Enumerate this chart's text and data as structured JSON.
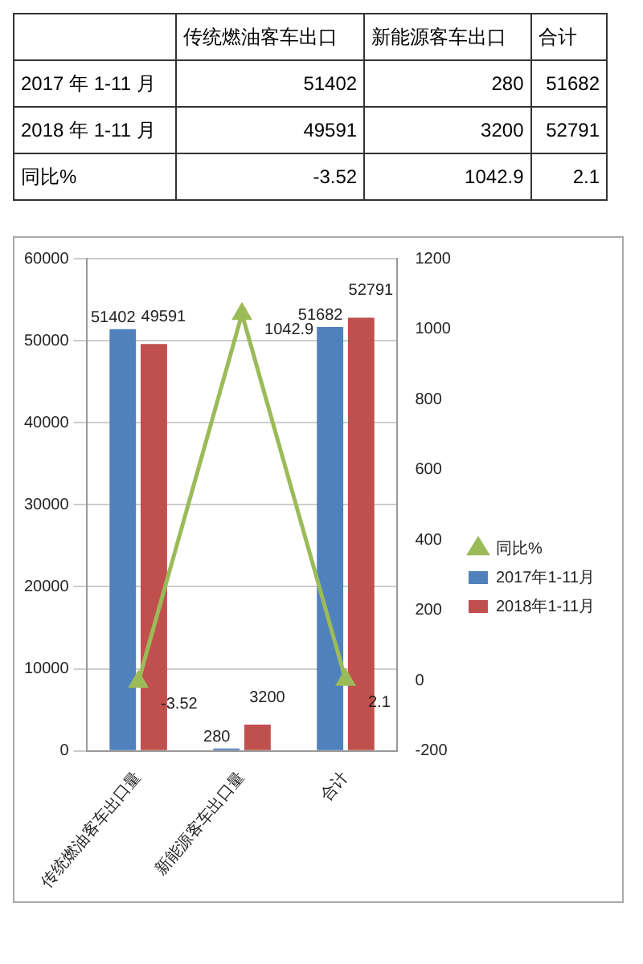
{
  "chart_data": [
    {
      "type": "other",
      "annotations": [
        "传统燃油客车出口",
        "新能源客车出口",
        "合计",
        "2017 年 1-11 月",
        "51402",
        "280",
        "51682",
        "2018 年 1-11 月",
        "49591",
        "3200",
        "52791",
        "同比%",
        "-3.52",
        "1042.9",
        "2.1"
      ]
    },
    {
      "type": "bar",
      "categories": [
        "传统燃油客车出口量",
        "新能源客车出口量",
        "合计"
      ],
      "series": [
        {
          "name": "2017年1-11月",
          "type": "bar",
          "color": "#4f81bd",
          "values": [
            51402,
            280,
            51682
          ]
        },
        {
          "name": "2018年1-11月",
          "type": "bar",
          "color": "#c0504d",
          "values": [
            49591,
            3200,
            52791
          ]
        },
        {
          "name": "同比%",
          "type": "line",
          "axis": "y2",
          "color": "#9bbb59",
          "values": [
            -3.52,
            1042.9,
            2.1
          ]
        }
      ],
      "ylim": [
        0,
        60000
      ],
      "yticks": [
        0,
        10000,
        20000,
        30000,
        40000,
        50000,
        60000
      ],
      "y2lim": [
        -200,
        1200
      ],
      "y2ticks": [
        -200,
        0,
        200,
        400,
        600,
        800,
        1000,
        1200
      ],
      "grid": "y",
      "legend": "right",
      "marker": "triangle",
      "line_style": "solid",
      "data_labels": true
    }
  ]
}
